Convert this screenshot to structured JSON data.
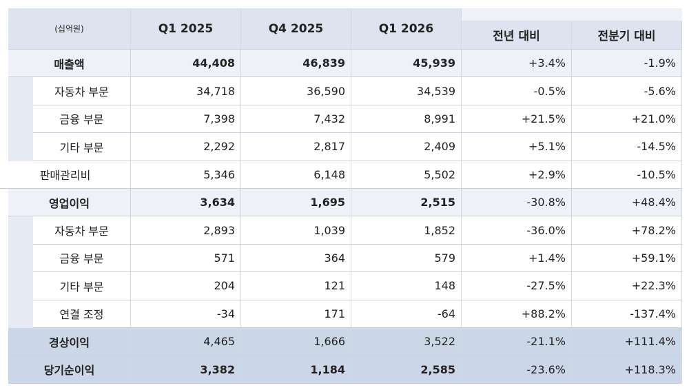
{
  "table": {
    "header": [
      "(십억원)",
      "Q1 2025",
      "Q4 2025",
      "Q1 2026",
      "전년 대비",
      "전분기 대비"
    ],
    "rows": [
      [
        "매출액",
        "44,408",
        "46,839",
        "45,939",
        "+3.4%",
        "-1.9%"
      ],
      [
        "자동차 부문",
        "34,718",
        "36,590",
        "34,539",
        "-0.5%",
        "-5.6%"
      ],
      [
        "금융 부문",
        "7,398",
        "7,432",
        "8,991",
        "+21.5%",
        "+21.0%"
      ],
      [
        "기타 부문",
        "2,292",
        "2,817",
        "2,409",
        "+5.1%",
        "-14.5%"
      ],
      [
        "판매관리비",
        "5,346",
        "6,148",
        "5,502",
        "+2.9%",
        "-10.5%"
      ],
      [
        "영업이익",
        "3,634",
        "1,695",
        "2,515",
        "-30.8%",
        "+48.4%"
      ],
      [
        "자동차 부문",
        "2,893",
        "1,039",
        "1,852",
        "-36.0%",
        "+78.2%"
      ],
      [
        "금융 부문",
        "571",
        "364",
        "579",
        "+1.4%",
        "+59.1%"
      ],
      [
        "기타 부문",
        "204",
        "121",
        "148",
        "-27.5%",
        "+22.3%"
      ],
      [
        "연결 조정",
        "-34",
        "171",
        "-64",
        "+88.2%",
        "-137.4%"
      ],
      [
        "경상이익",
        "4,465",
        "1,666",
        "3,522",
        "-21.1%",
        "+111.4%"
      ],
      [
        "당기순이익",
        "3,382",
        "1,184",
        "2,585",
        "-23.6%",
        "+118.3%"
      ]
    ]
  }
}
